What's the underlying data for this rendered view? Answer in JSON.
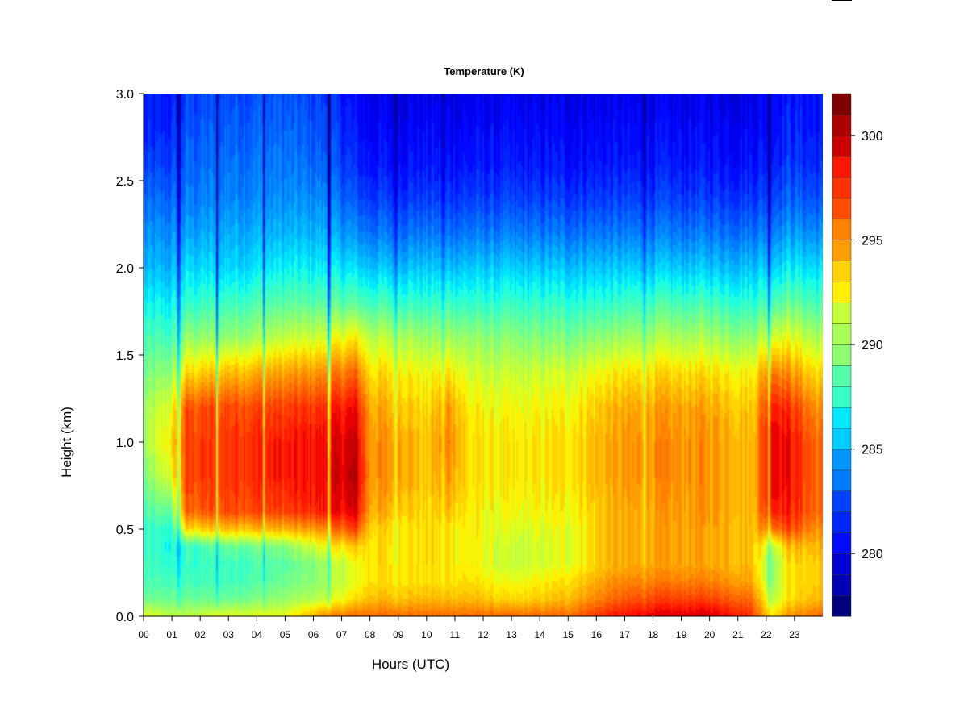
{
  "chart_data": {
    "type": "heatmap",
    "title": "Temperature (K)",
    "xlabel": "Hours (UTC)",
    "ylabel": "Height (km)",
    "xlim": [
      0,
      24
    ],
    "ylim": [
      0.0,
      3.0
    ],
    "x_ticks": [
      "00",
      "01",
      "02",
      "03",
      "04",
      "05",
      "06",
      "07",
      "08",
      "09",
      "10",
      "11",
      "12",
      "13",
      "14",
      "15",
      "16",
      "17",
      "18",
      "19",
      "20",
      "21",
      "22",
      "23"
    ],
    "y_ticks": [
      {
        "value": 0.0,
        "label": "0.0"
      },
      {
        "value": 0.5,
        "label": "0.5"
      },
      {
        "value": 1.0,
        "label": "1.0"
      },
      {
        "value": 1.5,
        "label": "1.5"
      },
      {
        "value": 2.0,
        "label": "2.0"
      },
      {
        "value": 2.5,
        "label": "2.5"
      },
      {
        "value": 3.0,
        "label": "3.0"
      }
    ],
    "colorbar": {
      "min": 277,
      "max": 302,
      "levels": 25,
      "ticks": [
        {
          "value": 280,
          "label": "280"
        },
        {
          "value": 285,
          "label": "285"
        },
        {
          "value": 290,
          "label": "290"
        },
        {
          "value": 295,
          "label": "295"
        },
        {
          "value": 300,
          "label": "300"
        }
      ],
      "colors": [
        "#00007f",
        "#00009a",
        "#0000b6",
        "#0000d2",
        "#0000ee",
        "#000aff",
        "#0026ff",
        "#0042ff",
        "#005eff",
        "#007aff",
        "#0096ff",
        "#00b2ff",
        "#00ceff",
        "#00eaff",
        "#1cffe2",
        "#38ffc6",
        "#55ffaa",
        "#71ff8d",
        "#8dff71",
        "#aaff55",
        "#c6ff38",
        "#e2ff1c",
        "#ffef00",
        "#ffd400",
        "#ffb900",
        "#ff9e00",
        "#ff8300",
        "#ff6800",
        "#ff4c00",
        "#ff3100",
        "#ff1600",
        "#ea0000",
        "#cb0000",
        "#ad0000",
        "#8e0000",
        "#7f0000"
      ]
    },
    "profile_heights_km": [
      0.0,
      0.1,
      0.2,
      0.3,
      0.4,
      0.5,
      0.6,
      0.8,
      1.0,
      1.2,
      1.4,
      1.6,
      1.8,
      2.0,
      2.2,
      2.4,
      2.6,
      2.8,
      3.0
    ],
    "profiles": [
      {
        "hour": 0,
        "T": [
          292,
          289,
          288,
          288,
          287.5,
          287.5,
          288,
          289,
          290,
          290,
          289,
          288,
          286.5,
          285,
          284,
          283,
          282,
          281,
          281
        ]
      },
      {
        "hour": 1,
        "T": [
          291,
          289,
          288,
          287.5,
          287,
          287.5,
          289,
          292,
          293,
          292,
          290,
          288,
          286.5,
          285,
          284,
          283,
          282,
          281.5,
          281
        ]
      },
      {
        "hour": 1.5,
        "T": [
          291,
          289,
          288,
          287.5,
          287.5,
          293,
          296,
          297,
          297,
          296.5,
          293,
          290,
          287.5,
          286,
          284.5,
          283.5,
          283,
          282.5,
          282
        ]
      },
      {
        "hour": 3,
        "T": [
          292,
          289,
          288,
          288,
          289,
          294,
          297,
          297.5,
          297.5,
          297,
          294,
          290,
          288,
          286,
          285,
          284,
          283.5,
          283,
          282.5
        ]
      },
      {
        "hour": 5,
        "T": [
          292,
          290,
          289,
          288.5,
          289.5,
          294,
          297,
          298,
          298,
          297,
          294.5,
          291,
          288.5,
          286.5,
          285,
          284,
          283.5,
          283,
          282.5
        ]
      },
      {
        "hour": 6.3,
        "T": [
          295,
          291,
          290,
          290,
          292,
          295,
          298,
          298.5,
          298.5,
          297.5,
          295,
          291.5,
          288.5,
          286.5,
          285,
          284,
          283,
          282.5,
          282
        ]
      },
      {
        "hour": 7.5,
        "T": [
          296,
          293,
          292,
          292,
          293.5,
          297,
          299,
          300,
          299.5,
          298.5,
          296,
          292.5,
          288.5,
          286,
          284,
          282.5,
          281.5,
          281,
          280.5
        ]
      },
      {
        "hour": 8,
        "T": [
          296,
          294,
          293,
          293,
          293,
          293.5,
          294.5,
          295,
          295,
          294.5,
          293,
          291,
          288,
          285.5,
          283.5,
          282,
          281,
          280.5,
          280
        ]
      },
      {
        "hour": 9,
        "T": [
          296,
          294,
          293,
          293,
          293,
          293,
          294,
          295,
          295,
          294,
          293,
          291,
          288,
          285.5,
          283.5,
          282,
          281,
          280.5,
          280
        ]
      },
      {
        "hour": 10,
        "T": [
          296,
          294,
          293,
          293,
          293,
          293,
          293,
          293.5,
          293.5,
          293,
          292,
          290,
          287.5,
          285.5,
          283.5,
          282,
          281,
          280.5,
          280
        ]
      },
      {
        "hour": 10.8,
        "T": [
          296,
          294,
          293,
          293,
          293,
          293,
          294,
          295,
          295.5,
          295,
          293,
          290.5,
          288,
          285.5,
          283.5,
          282,
          281,
          280.5,
          280
        ]
      },
      {
        "hour": 11.5,
        "T": [
          296,
          294,
          293,
          292.5,
          292.5,
          292.5,
          292.5,
          293,
          293,
          292.5,
          291.5,
          290,
          287.5,
          285.5,
          283.5,
          282,
          281,
          280.5,
          280
        ]
      },
      {
        "hour": 13,
        "T": [
          296,
          293,
          292,
          291,
          291,
          291.5,
          292,
          292.5,
          292.5,
          292,
          291,
          289.5,
          287.5,
          285.5,
          283.5,
          282,
          281,
          280.5,
          280
        ]
      },
      {
        "hour": 15,
        "T": [
          296,
          294,
          293,
          292,
          292,
          292,
          292.5,
          293,
          293,
          292.5,
          291.5,
          289.5,
          287.5,
          285.5,
          283.5,
          282,
          281,
          280.5,
          280
        ]
      },
      {
        "hour": 16.5,
        "T": [
          298,
          296,
          295,
          294,
          294,
          294,
          294,
          294.5,
          294.5,
          294,
          292.5,
          290,
          287.5,
          285.5,
          283.5,
          282,
          281,
          280.5,
          280
        ]
      },
      {
        "hour": 18,
        "T": [
          299,
          297,
          295.5,
          294.5,
          294.5,
          294.5,
          294.5,
          295,
          295,
          294.5,
          293,
          290.5,
          288,
          285.5,
          283.5,
          282,
          281,
          280.5,
          280
        ]
      },
      {
        "hour": 20,
        "T": [
          299.5,
          297,
          295.5,
          294.5,
          294.5,
          294.5,
          295,
          295,
          295,
          294.5,
          293,
          290.5,
          288,
          285.5,
          283.5,
          282,
          281,
          280.5,
          280
        ]
      },
      {
        "hour": 21.5,
        "T": [
          297.5,
          296,
          294.5,
          294,
          294,
          294,
          294,
          294,
          294,
          293.5,
          292.5,
          290,
          287.5,
          285.5,
          283.5,
          282,
          281,
          280.5,
          280
        ]
      },
      {
        "hour": 22.2,
        "T": [
          293,
          291,
          290,
          290,
          291,
          296,
          298.5,
          299.5,
          299.5,
          298.5,
          296,
          292,
          288.5,
          286,
          284,
          282.5,
          281.5,
          281,
          281
        ]
      },
      {
        "hour": 22.8,
        "T": [
          295,
          293,
          293,
          293,
          294,
          297,
          298,
          298.5,
          298.5,
          297.5,
          295,
          292,
          289,
          286.5,
          284.5,
          283,
          282,
          281.5,
          281
        ]
      },
      {
        "hour": 23.8,
        "T": [
          296,
          294,
          293.5,
          293.5,
          294,
          295,
          296,
          296,
          296,
          295,
          293,
          290.5,
          288,
          286,
          284,
          282.5,
          281.5,
          281,
          281
        ]
      }
    ],
    "cool_streaks": [
      {
        "hour": 1.25,
        "delta": -7
      },
      {
        "hour": 2.6,
        "delta": -7
      },
      {
        "hour": 4.25,
        "delta": -4
      },
      {
        "hour": 6.55,
        "delta": -8
      },
      {
        "hour": 8.9,
        "delta": -4
      },
      {
        "hour": 10.6,
        "delta": -3
      },
      {
        "hour": 17.7,
        "delta": -2
      },
      {
        "hour": 22.1,
        "delta": -6
      }
    ]
  }
}
